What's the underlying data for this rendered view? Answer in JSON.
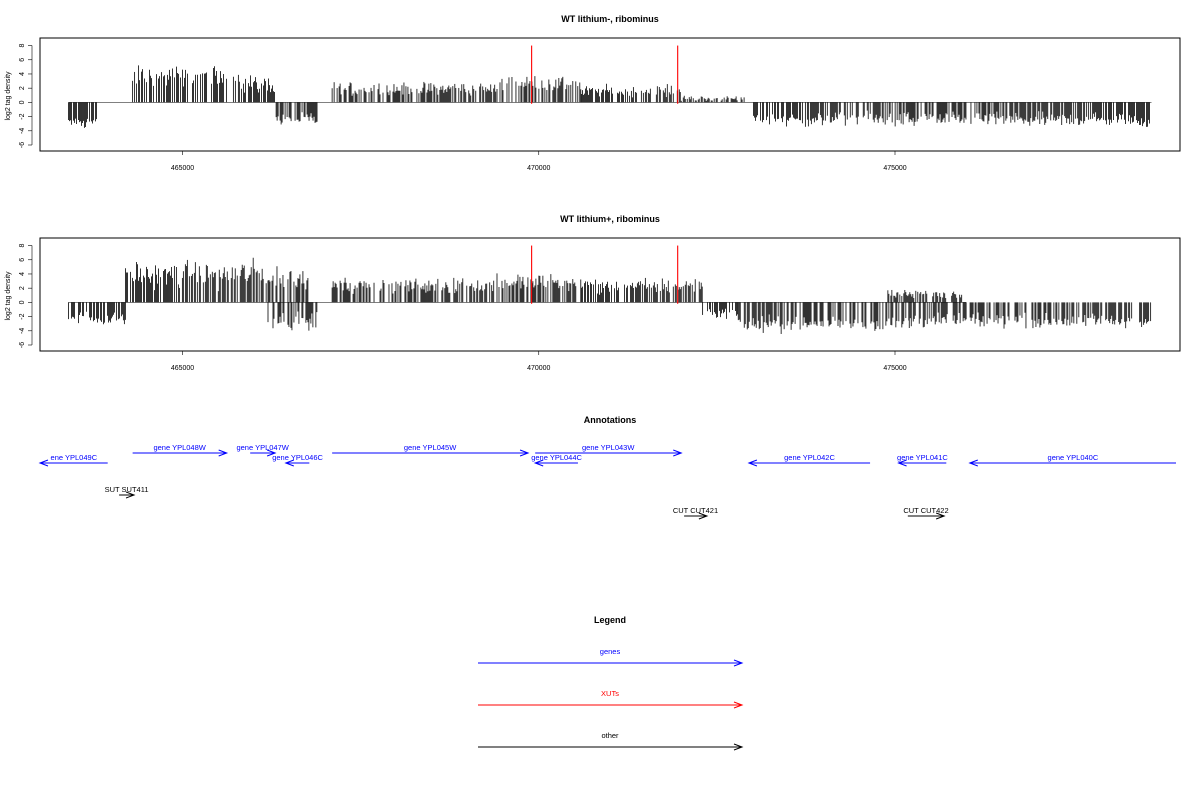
{
  "colors": {
    "gene": "#0000ff",
    "xut": "#ff0000",
    "other": "#000000",
    "marker": "#ff0000"
  },
  "chart_data": [
    {
      "type": "bar",
      "title": "WT lithium-, ribominus",
      "ylabel": "log2 tag density",
      "xlim": [
        463000,
        479000
      ],
      "ylim": [
        -6,
        8.5
      ],
      "x_ticks": [
        465000,
        470000,
        475000
      ],
      "x_tick_labels": [
        "465000",
        "470000",
        "475000"
      ],
      "y_ticks": [
        -6,
        -4,
        -2,
        0,
        2,
        4,
        6,
        8
      ],
      "y_tick_labels": [
        "-6",
        "-4",
        "-2",
        "0",
        "2",
        "4",
        "6",
        "8"
      ],
      "markers": [
        469900,
        471950
      ],
      "segments": [
        {
          "start": 463400,
          "end": 463800,
          "mean": -2.8,
          "sd": 0.6
        },
        {
          "start": 464300,
          "end": 465800,
          "mean": 3.6,
          "sd": 1.2
        },
        {
          "start": 465800,
          "end": 466300,
          "mean": 2.6,
          "sd": 1.0
        },
        {
          "start": 466300,
          "end": 466900,
          "mean": -2.4,
          "sd": 0.7
        },
        {
          "start": 467100,
          "end": 469400,
          "mean": 1.9,
          "sd": 0.8
        },
        {
          "start": 469400,
          "end": 470600,
          "mean": 2.6,
          "sd": 0.9
        },
        {
          "start": 470600,
          "end": 472000,
          "mean": 1.6,
          "sd": 0.7
        },
        {
          "start": 472000,
          "end": 472900,
          "mean": 0.4,
          "sd": 0.4
        },
        {
          "start": 473000,
          "end": 478600,
          "mean": -2.4,
          "sd": 0.8
        }
      ]
    },
    {
      "type": "bar",
      "title": "WT lithium+, ribominus",
      "ylabel": "log2 tag density",
      "xlim": [
        463000,
        479000
      ],
      "ylim": [
        -6,
        8.5
      ],
      "x_ticks": [
        465000,
        470000,
        475000
      ],
      "x_tick_labels": [
        "465000",
        "470000",
        "475000"
      ],
      "y_ticks": [
        -6,
        -4,
        -2,
        0,
        2,
        4,
        6,
        8
      ],
      "y_tick_labels": [
        "-6",
        "-4",
        "-2",
        "0",
        "2",
        "4",
        "6",
        "8"
      ],
      "markers": [
        469900,
        471950
      ],
      "segments": [
        {
          "start": 463400,
          "end": 464200,
          "mean": -2.2,
          "sd": 0.8
        },
        {
          "start": 464200,
          "end": 466200,
          "mean": 4.0,
          "sd": 1.5
        },
        {
          "start": 466200,
          "end": 466800,
          "mean": 3.2,
          "sd": 1.3
        },
        {
          "start": 466200,
          "end": 466900,
          "mean": -2.6,
          "sd": 0.9
        },
        {
          "start": 467100,
          "end": 469400,
          "mean": 2.4,
          "sd": 0.9
        },
        {
          "start": 469400,
          "end": 470600,
          "mean": 2.8,
          "sd": 1.0
        },
        {
          "start": 470600,
          "end": 472300,
          "mean": 2.3,
          "sd": 0.9
        },
        {
          "start": 472300,
          "end": 472800,
          "mean": -1.5,
          "sd": 0.6
        },
        {
          "start": 472800,
          "end": 475200,
          "mean": -3.0,
          "sd": 0.9
        },
        {
          "start": 475200,
          "end": 478600,
          "mean": -2.6,
          "sd": 0.8
        },
        {
          "start": 474900,
          "end": 476000,
          "mean": 1.2,
          "sd": 0.6
        }
      ]
    }
  ],
  "annotations": {
    "title": "Annotations",
    "features": [
      {
        "label": "ene YPL049C",
        "start": 463000,
        "end": 463950,
        "strand": "-",
        "kind": "gene",
        "row": 1
      },
      {
        "label": "gene YPL048W",
        "start": 464300,
        "end": 465620,
        "strand": "+",
        "kind": "gene",
        "row": 0
      },
      {
        "label": "gene YPL047W",
        "start": 465950,
        "end": 466300,
        "strand": "+",
        "kind": "gene",
        "row": 0
      },
      {
        "label": "gene YPL046C",
        "start": 466450,
        "end": 466780,
        "strand": "-",
        "kind": "gene",
        "row": 1
      },
      {
        "label": "gene YPL045W",
        "start": 467100,
        "end": 469850,
        "strand": "+",
        "kind": "gene",
        "row": 0
      },
      {
        "label": "gene YPL043W",
        "start": 469950,
        "end": 472000,
        "strand": "+",
        "kind": "gene",
        "row": 0
      },
      {
        "label": "gene YPL044C",
        "start": 469950,
        "end": 470550,
        "strand": "-",
        "kind": "gene",
        "row": 1
      },
      {
        "label": "gene YPL042C",
        "start": 472950,
        "end": 474650,
        "strand": "-",
        "kind": "gene",
        "row": 1
      },
      {
        "label": "gene YPL041C",
        "start": 475050,
        "end": 475720,
        "strand": "-",
        "kind": "gene",
        "row": 1
      },
      {
        "label": "gene YPL040C",
        "start": 476050,
        "end": 479000,
        "strand": "-",
        "kind": "gene",
        "row": 1
      },
      {
        "label": "SUT SUT411",
        "start": 464110,
        "end": 464320,
        "strand": "+",
        "kind": "other",
        "row": 2
      },
      {
        "label": "CUT CUT421",
        "start": 472040,
        "end": 472360,
        "strand": "+",
        "kind": "other",
        "row": 3
      },
      {
        "label": "CUT CUT422",
        "start": 475180,
        "end": 475690,
        "strand": "+",
        "kind": "other",
        "row": 3
      }
    ]
  },
  "legend": {
    "title": "Legend",
    "items": [
      {
        "label": "genes",
        "color": "#0000ff"
      },
      {
        "label": "XUTs",
        "color": "#ff0000"
      },
      {
        "label": "other",
        "color": "#000000"
      }
    ]
  }
}
